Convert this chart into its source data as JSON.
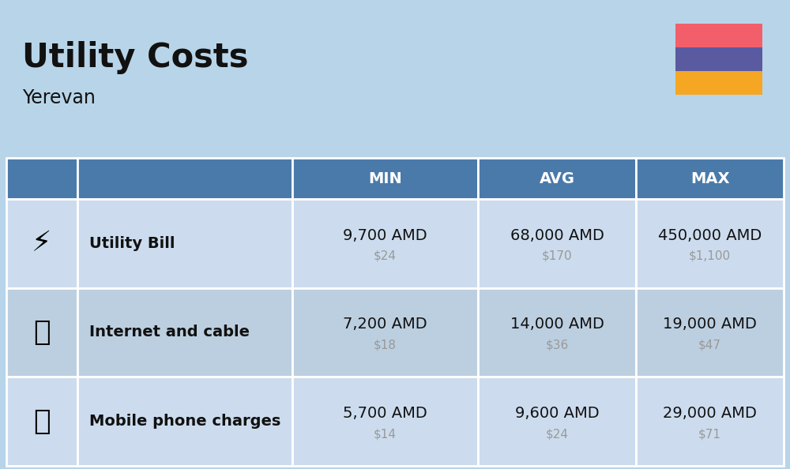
{
  "title": "Utility Costs",
  "subtitle": "Yerevan",
  "background_color": "#b8d4e8",
  "header_bg_color": "#4a7aaa",
  "header_text_color": "#ffffff",
  "row_bg_color_even": "#ccdcee",
  "row_bg_color_odd": "#bccfe0",
  "table_border_color": "#ffffff",
  "col_headers": [
    "MIN",
    "AVG",
    "MAX"
  ],
  "rows": [
    {
      "label": "Utility Bill",
      "icon": "⚡",
      "min_amd": "9,700 AMD",
      "min_usd": "$24",
      "avg_amd": "68,000 AMD",
      "avg_usd": "$170",
      "max_amd": "450,000 AMD",
      "max_usd": "$1,100"
    },
    {
      "label": "Internet and cable",
      "icon": "📡",
      "min_amd": "7,200 AMD",
      "min_usd": "$18",
      "avg_amd": "14,000 AMD",
      "avg_usd": "$36",
      "max_amd": "19,000 AMD",
      "max_usd": "$47"
    },
    {
      "label": "Mobile phone charges",
      "icon": "📱",
      "min_amd": "5,700 AMD",
      "min_usd": "$14",
      "avg_amd": "9,600 AMD",
      "avg_usd": "$24",
      "max_amd": "29,000 AMD",
      "max_usd": "$71"
    }
  ],
  "flag_colors": [
    "#f25f6a",
    "#5a5aa0",
    "#f5a623"
  ],
  "title_fontsize": 30,
  "subtitle_fontsize": 17,
  "amd_fontsize": 14,
  "usd_fontsize": 11,
  "usd_color": "#999999",
  "label_fontsize": 14,
  "header_fontsize": 14,
  "fig_width": 10.0,
  "fig_height": 5.94
}
